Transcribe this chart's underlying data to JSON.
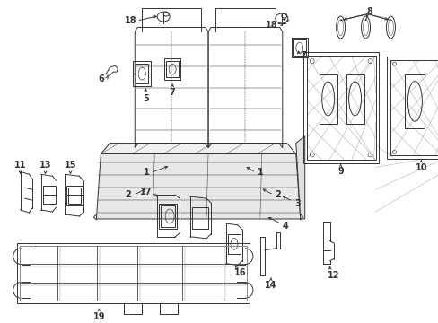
{
  "bg_color": "#ffffff",
  "fig_width": 4.89,
  "fig_height": 3.6,
  "dpi": 100,
  "lc": "#333333",
  "lw": 0.7,
  "fs": 7.0
}
